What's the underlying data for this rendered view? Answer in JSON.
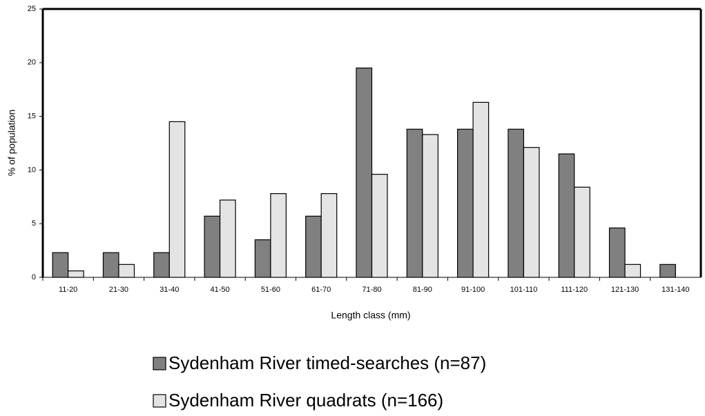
{
  "chart_data": {
    "type": "bar",
    "xlabel": "Length class (mm)",
    "ylabel": "% of population",
    "categories": [
      "11-20",
      "21-30",
      "31-40",
      "41-50",
      "51-60",
      "61-70",
      "71-80",
      "81-90",
      "91-100",
      "101-110",
      "111-120",
      "121-130",
      "131-140"
    ],
    "series": [
      {
        "name": "Sydenham River timed-searches (n=87)",
        "color": "#808080",
        "values": [
          2.3,
          2.3,
          2.3,
          5.7,
          3.5,
          5.7,
          19.5,
          13.8,
          13.8,
          13.8,
          11.5,
          4.6,
          1.2
        ]
      },
      {
        "name": "Sydenham River quadrats (n=166)",
        "color": "#e4e4e4",
        "values": [
          0.6,
          1.2,
          14.5,
          7.2,
          7.8,
          7.8,
          9.6,
          13.3,
          16.3,
          12.1,
          8.4,
          1.2,
          null
        ]
      }
    ],
    "ylim": [
      0,
      25
    ],
    "yticks": [
      0,
      5,
      10,
      15,
      20,
      25
    ],
    "grid": false,
    "legend": "bottom"
  }
}
